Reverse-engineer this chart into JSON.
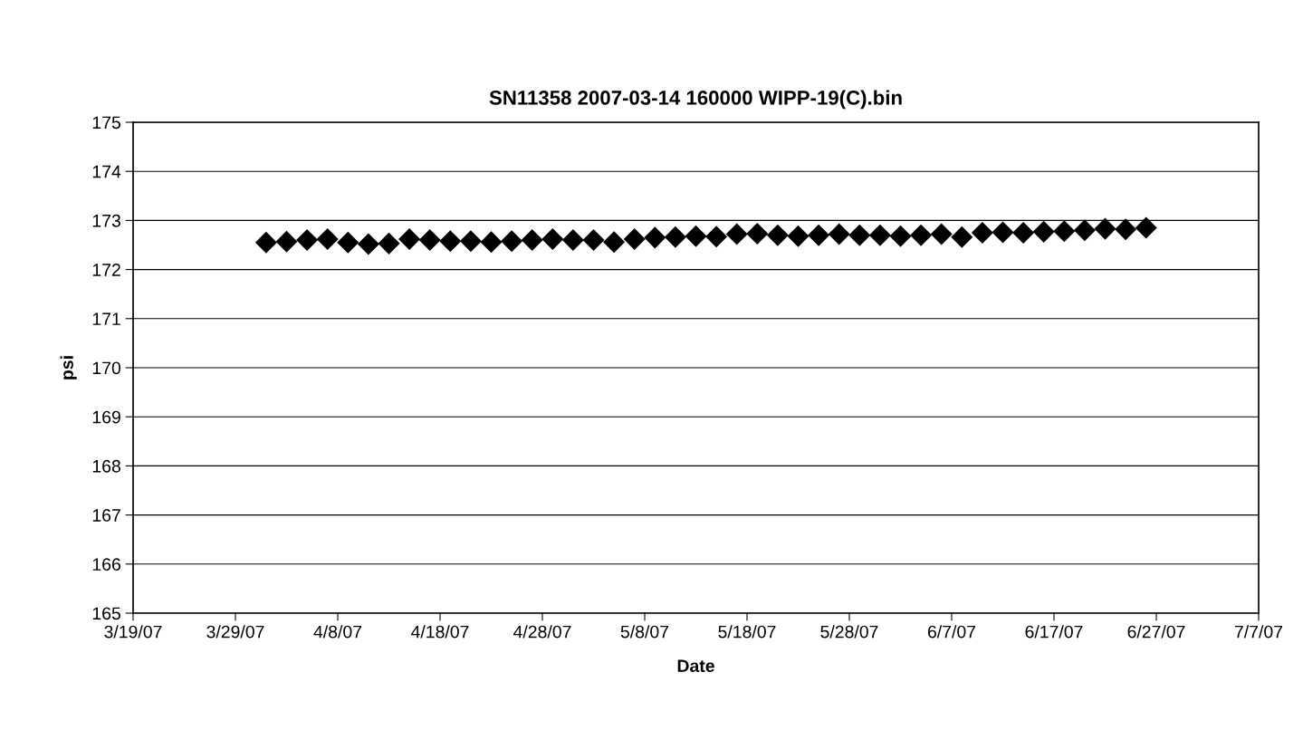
{
  "chart_data": {
    "type": "scatter",
    "title": "SN11358 2007-03-14 160000 WIPP-19(C).bin",
    "xlabel": "Date",
    "ylabel": "psi",
    "x": [
      "2007-04-01",
      "2007-04-03",
      "2007-04-05",
      "2007-04-07",
      "2007-04-09",
      "2007-04-11",
      "2007-04-13",
      "2007-04-15",
      "2007-04-17",
      "2007-04-19",
      "2007-04-21",
      "2007-04-23",
      "2007-04-25",
      "2007-04-27",
      "2007-04-29",
      "2007-05-01",
      "2007-05-03",
      "2007-05-05",
      "2007-05-07",
      "2007-05-09",
      "2007-05-11",
      "2007-05-13",
      "2007-05-15",
      "2007-05-17",
      "2007-05-19",
      "2007-05-21",
      "2007-05-23",
      "2007-05-25",
      "2007-05-27",
      "2007-05-29",
      "2007-05-31",
      "2007-06-02",
      "2007-06-04",
      "2007-06-06",
      "2007-06-08",
      "2007-06-10",
      "2007-06-12",
      "2007-06-14",
      "2007-06-16",
      "2007-06-18",
      "2007-06-20",
      "2007-06-22",
      "2007-06-24",
      "2007-06-26"
    ],
    "series": [
      {
        "color": "#000000",
        "values": [
          172.55,
          172.57,
          172.6,
          172.62,
          172.55,
          172.52,
          172.53,
          172.62,
          172.6,
          172.58,
          172.58,
          172.56,
          172.58,
          172.6,
          172.62,
          172.6,
          172.6,
          172.56,
          172.62,
          172.65,
          172.66,
          172.68,
          172.67,
          172.72,
          172.73,
          172.7,
          172.68,
          172.7,
          172.72,
          172.7,
          172.7,
          172.68,
          172.7,
          172.72,
          172.66,
          172.75,
          172.76,
          172.75,
          172.77,
          172.78,
          172.8,
          172.83,
          172.82,
          172.85
        ]
      }
    ],
    "xlim": [
      "2007-03-19",
      "2007-07-07"
    ],
    "xticks": [
      {
        "value": "2007-03-19",
        "label": "3/19/07"
      },
      {
        "value": "2007-03-29",
        "label": "3/29/07"
      },
      {
        "value": "2007-04-08",
        "label": "4/8/07"
      },
      {
        "value": "2007-04-18",
        "label": "4/18/07"
      },
      {
        "value": "2007-04-28",
        "label": "4/28/07"
      },
      {
        "value": "2007-05-08",
        "label": "5/8/07"
      },
      {
        "value": "2007-05-18",
        "label": "5/18/07"
      },
      {
        "value": "2007-05-28",
        "label": "5/28/07"
      },
      {
        "value": "2007-06-07",
        "label": "6/7/07"
      },
      {
        "value": "2007-06-17",
        "label": "6/17/07"
      },
      {
        "value": "2007-06-27",
        "label": "6/27/07"
      },
      {
        "value": "2007-07-07",
        "label": "7/7/07"
      }
    ],
    "ylim": [
      165,
      175
    ],
    "yticks": [
      165,
      166,
      167,
      168,
      169,
      170,
      171,
      172,
      173,
      174,
      175
    ],
    "grid": "y",
    "marker": "diamond",
    "legend": false
  }
}
